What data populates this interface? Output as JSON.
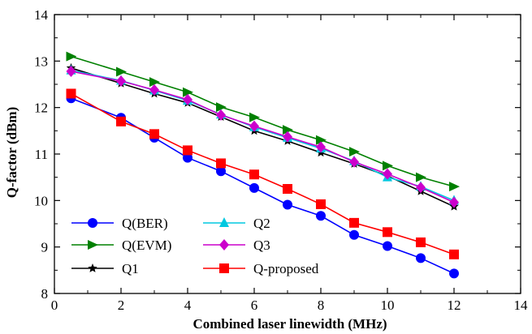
{
  "chart_data": {
    "type": "line",
    "title": "",
    "xlabel": "Combined laser linewidth (MHz)",
    "ylabel": "Q-factor (dBm)",
    "xlim": [
      0,
      14
    ],
    "ylim": [
      8,
      14
    ],
    "xticks": [
      0,
      2,
      4,
      6,
      8,
      10,
      12,
      14
    ],
    "yticks": [
      8,
      9,
      10,
      11,
      12,
      13,
      14
    ],
    "grid": false,
    "legend_position": "bottom-left",
    "x": [
      0.5,
      2,
      3,
      4,
      5,
      6,
      7,
      8,
      9,
      10,
      11,
      12
    ],
    "series": [
      {
        "name": "Q(BER)",
        "color": "#0000ff",
        "marker": "circle",
        "values": [
          12.2,
          11.78,
          11.35,
          10.92,
          10.63,
          10.27,
          9.91,
          9.67,
          9.26,
          9.02,
          8.76,
          8.43
        ]
      },
      {
        "name": "Q(EVM)",
        "color": "#008000",
        "marker": "triangle-right",
        "values": [
          13.1,
          12.77,
          12.55,
          12.33,
          12.01,
          11.79,
          11.52,
          11.3,
          11.05,
          10.75,
          10.5,
          10.3
        ]
      },
      {
        "name": "Q1",
        "color": "#000000",
        "marker": "star",
        "values": [
          12.85,
          12.52,
          12.3,
          12.1,
          11.8,
          11.5,
          11.28,
          11.03,
          10.79,
          10.53,
          10.2,
          9.87
        ]
      },
      {
        "name": "Q2",
        "color": "#00c8e0",
        "marker": "triangle-up",
        "values": [
          12.8,
          12.58,
          12.37,
          12.15,
          11.85,
          11.58,
          11.35,
          11.12,
          10.85,
          10.5,
          10.3,
          10.0
        ]
      },
      {
        "name": "Q3",
        "color": "#cc00cc",
        "marker": "diamond",
        "values": [
          12.78,
          12.57,
          12.38,
          12.17,
          11.84,
          11.6,
          11.37,
          11.15,
          10.83,
          10.57,
          10.28,
          9.96
        ]
      },
      {
        "name": "Q-proposed",
        "color": "#ff0000",
        "marker": "square",
        "values": [
          12.3,
          11.7,
          11.43,
          11.08,
          10.8,
          10.56,
          10.25,
          9.92,
          9.52,
          9.32,
          9.1,
          8.84
        ]
      }
    ]
  }
}
